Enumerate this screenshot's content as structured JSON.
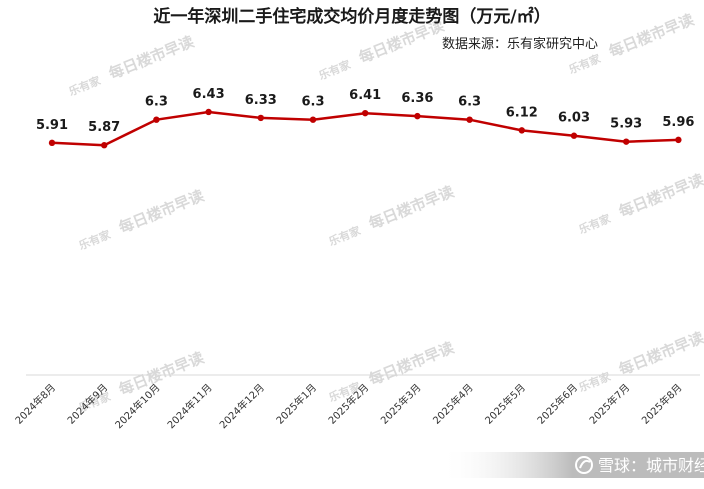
{
  "chart_data": {
    "type": "line",
    "title": "近一年深圳二手住宅成交均价月度走势图（万元/㎡）",
    "subtitle": "数据来源：乐有家研究中心",
    "categories": [
      "2024年8月",
      "2024年9月",
      "2024年10月",
      "2024年11月",
      "2024年12月",
      "2025年1月",
      "2025年2月",
      "2025年3月",
      "2025年4月",
      "2025年5月",
      "2025年6月",
      "2025年7月",
      "2025年8月"
    ],
    "series": [
      {
        "values": [
          5.91,
          5.87,
          6.3,
          6.43,
          6.33,
          6.3,
          6.41,
          6.36,
          6.3,
          6.12,
          6.03,
          5.93,
          5.96
        ],
        "color": "#c00000"
      }
    ],
    "ylim": [
      2,
      6.8
    ],
    "grid": false,
    "legend": "none"
  },
  "watermark": {
    "logo": "乐有家",
    "text": "每日楼市早读"
  },
  "footer": {
    "icon": "snowball-icon",
    "text": "雪球：城市财经"
  }
}
